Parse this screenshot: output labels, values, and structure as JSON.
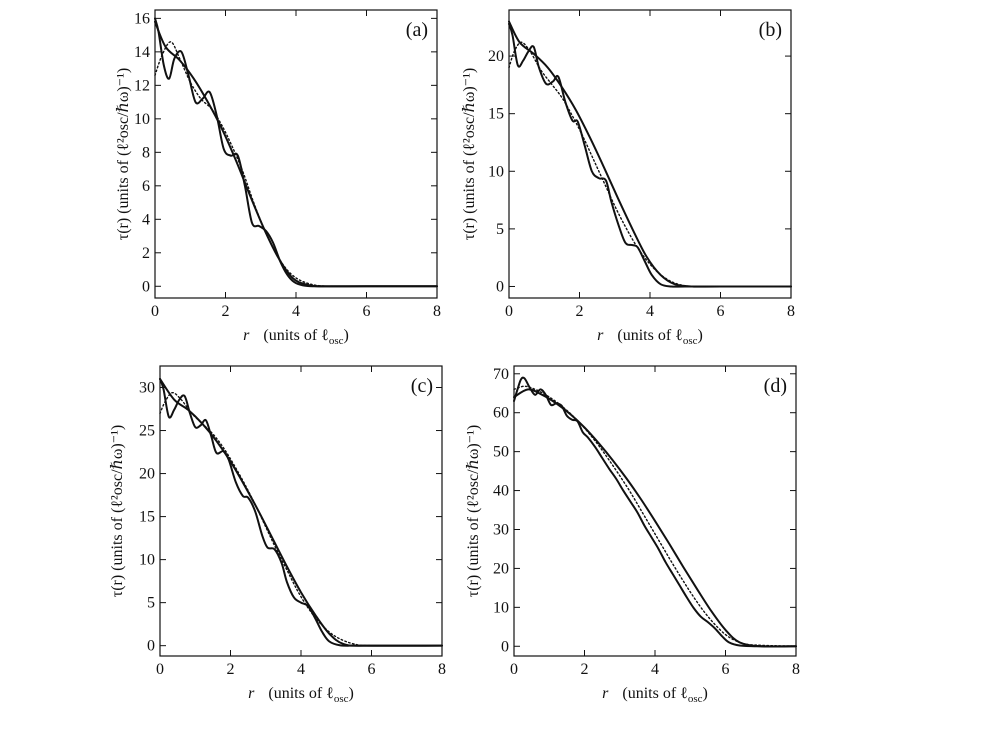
{
  "chart_data": [
    {
      "type": "line",
      "panel": "(a)",
      "xlabel_prefix": "r",
      "xlabel_units": "(units of ℓ",
      "xlabel_sub": "osc",
      "xlabel_close": ")",
      "ylabel": "τ(r)  (units of (ℓ²osc/ℏω)⁻¹)",
      "xlim": [
        0,
        8
      ],
      "ylim": [
        -0.7,
        16.5
      ],
      "xticks": [
        0,
        2,
        4,
        6,
        8
      ],
      "yticks": [
        0,
        2,
        4,
        6,
        8,
        10,
        12,
        14,
        16
      ],
      "series": [
        {
          "name": "solid oscillating",
          "style": "solid",
          "x": [
            0,
            0.1,
            0.25,
            0.4,
            0.55,
            0.75,
            0.95,
            1.15,
            1.35,
            1.55,
            1.75,
            1.95,
            2.15,
            2.35,
            2.55,
            2.75,
            2.95,
            3.15,
            3.35,
            3.55,
            3.75,
            3.95,
            4.2,
            4.5,
            5,
            6,
            8
          ],
          "y": [
            16.0,
            15.2,
            13.2,
            12.4,
            13.6,
            14.0,
            12.6,
            11.0,
            11.2,
            11.6,
            10.2,
            8.2,
            7.8,
            7.8,
            6.0,
            3.8,
            3.6,
            3.3,
            2.6,
            1.5,
            0.7,
            0.25,
            0.05,
            0.0,
            0.0,
            0.0,
            0.0
          ]
        },
        {
          "name": "solid smooth",
          "style": "solid",
          "x": [
            0,
            0.3,
            0.7,
            1.1,
            1.5,
            1.9,
            2.3,
            2.7,
            3.1,
            3.5,
            3.9,
            4.3,
            4.8,
            6,
            8
          ],
          "y": [
            15.8,
            14.3,
            13.5,
            12.4,
            11.0,
            9.4,
            7.5,
            5.4,
            3.4,
            1.7,
            0.5,
            0.1,
            0.0,
            0.0,
            0.0
          ]
        },
        {
          "name": "dotted",
          "style": "dotted",
          "x": [
            0,
            0.2,
            0.45,
            0.7,
            1.0,
            1.3,
            1.6,
            1.9,
            2.2,
            2.5,
            2.8,
            3.1,
            3.4,
            3.7,
            4.0,
            4.3,
            4.6,
            5.0,
            6,
            8
          ],
          "y": [
            12.6,
            13.8,
            14.6,
            13.6,
            12.2,
            11.2,
            10.6,
            9.6,
            8.3,
            6.8,
            5.0,
            3.4,
            2.1,
            1.1,
            0.5,
            0.2,
            0.05,
            0.0,
            0.0,
            0.0
          ]
        }
      ]
    },
    {
      "type": "line",
      "panel": "(b)",
      "xlabel_prefix": "r",
      "xlabel_units": "(units of ℓ",
      "xlabel_sub": "osc",
      "xlabel_close": ")",
      "ylabel": "τ(r)  (units of (ℓ²osc/ℏω)⁻¹)",
      "xlim": [
        0,
        8
      ],
      "ylim": [
        -1,
        24
      ],
      "xticks": [
        0,
        2,
        4,
        6,
        8
      ],
      "yticks": [
        0,
        5,
        10,
        15,
        20
      ],
      "series": [
        {
          "name": "solid oscillating",
          "style": "solid",
          "x": [
            0,
            0.1,
            0.25,
            0.4,
            0.55,
            0.7,
            0.85,
            1.05,
            1.25,
            1.4,
            1.6,
            1.8,
            1.95,
            2.15,
            2.35,
            2.55,
            2.75,
            2.9,
            3.1,
            3.3,
            3.5,
            3.65,
            3.85,
            4.05,
            4.3,
            4.6,
            5,
            6,
            8
          ],
          "y": [
            22.8,
            21.8,
            19.2,
            19.6,
            20.4,
            20.8,
            19.0,
            17.6,
            17.8,
            18.2,
            16.0,
            14.4,
            14.3,
            12.2,
            10.0,
            9.4,
            9.2,
            7.4,
            5.4,
            3.8,
            3.6,
            3.4,
            2.2,
            1.0,
            0.2,
            0.0,
            0.0,
            0.0,
            0.0
          ]
        },
        {
          "name": "solid smooth",
          "style": "solid",
          "x": [
            0,
            0.3,
            0.7,
            1.1,
            1.5,
            1.9,
            2.3,
            2.7,
            3.1,
            3.5,
            3.9,
            4.3,
            4.7,
            5.2,
            6,
            8
          ],
          "y": [
            23.0,
            21.2,
            20.2,
            19.0,
            17.3,
            15.3,
            12.9,
            10.3,
            7.6,
            5.0,
            2.6,
            1.0,
            0.2,
            0.0,
            0.0,
            0.0
          ]
        },
        {
          "name": "dotted",
          "style": "dotted",
          "x": [
            0,
            0.15,
            0.35,
            0.6,
            0.9,
            1.2,
            1.5,
            1.8,
            2.1,
            2.4,
            2.7,
            3.0,
            3.3,
            3.6,
            3.9,
            4.2,
            4.5,
            4.8,
            5.2,
            6,
            8
          ],
          "y": [
            19.0,
            20.4,
            21.2,
            20.4,
            18.8,
            17.6,
            16.4,
            14.8,
            13.0,
            11.0,
            9.0,
            7.0,
            5.2,
            3.6,
            2.3,
            1.3,
            0.6,
            0.2,
            0.0,
            0.0,
            0.0
          ]
        }
      ]
    },
    {
      "type": "line",
      "panel": "(c)",
      "xlabel_prefix": "r",
      "xlabel_units": "(units of ℓ",
      "xlabel_sub": "osc",
      "xlabel_close": ")",
      "ylabel": "τ(r)  (units of (ℓ²osc/ℏω)⁻¹)",
      "xlim": [
        0,
        8
      ],
      "ylim": [
        -1.2,
        32.5
      ],
      "xticks": [
        0,
        2,
        4,
        6,
        8
      ],
      "yticks": [
        0,
        5,
        10,
        15,
        20,
        25,
        30
      ],
      "series": [
        {
          "name": "solid oscillating",
          "style": "solid",
          "x": [
            0,
            0.1,
            0.25,
            0.4,
            0.55,
            0.7,
            0.85,
            1.0,
            1.15,
            1.3,
            1.45,
            1.6,
            1.8,
            1.95,
            2.15,
            2.35,
            2.5,
            2.7,
            2.9,
            3.05,
            3.25,
            3.45,
            3.6,
            3.8,
            4.0,
            4.2,
            4.4,
            4.6,
            4.8,
            5.1,
            5.5,
            6,
            8
          ],
          "y": [
            31.0,
            29.8,
            26.6,
            27.4,
            28.6,
            29.0,
            27.0,
            25.4,
            25.6,
            26.2,
            24.4,
            22.4,
            22.6,
            21.6,
            19.0,
            17.4,
            17.2,
            15.6,
            12.8,
            11.4,
            11.2,
            9.6,
            7.4,
            5.6,
            5.0,
            4.6,
            3.2,
            1.6,
            0.5,
            0.05,
            0.0,
            0.0,
            0.0
          ]
        },
        {
          "name": "solid smooth",
          "style": "solid",
          "x": [
            0,
            0.4,
            0.8,
            1.2,
            1.6,
            2.0,
            2.4,
            2.8,
            3.2,
            3.6,
            4.0,
            4.4,
            4.8,
            5.2,
            5.8,
            8
          ],
          "y": [
            31.0,
            28.6,
            27.4,
            25.8,
            23.8,
            21.4,
            18.6,
            15.6,
            12.4,
            9.2,
            6.2,
            3.6,
            1.4,
            0.2,
            0.0,
            0.0
          ]
        },
        {
          "name": "dotted",
          "style": "dotted",
          "x": [
            0,
            0.15,
            0.35,
            0.6,
            0.9,
            1.2,
            1.5,
            1.8,
            2.1,
            2.4,
            2.7,
            3.0,
            3.3,
            3.6,
            3.9,
            4.2,
            4.5,
            4.8,
            5.1,
            5.5,
            6,
            8
          ],
          "y": [
            27.0,
            28.4,
            29.4,
            28.6,
            27.0,
            25.8,
            24.6,
            23.0,
            21.0,
            18.8,
            16.4,
            13.8,
            11.2,
            8.8,
            6.4,
            4.4,
            2.8,
            1.6,
            0.8,
            0.2,
            0.0,
            0.0
          ]
        }
      ]
    },
    {
      "type": "line",
      "panel": "(d)",
      "xlabel_prefix": "r",
      "xlabel_units": "(units of ℓ",
      "xlabel_sub": "osc",
      "xlabel_close": ")",
      "ylabel": "τ(r)  (units of (ℓ²osc/ℏω)⁻¹)",
      "xlim": [
        0,
        8
      ],
      "ylim": [
        -2.5,
        72
      ],
      "xticks": [
        0,
        2,
        4,
        6,
        8
      ],
      "yticks": [
        0,
        10,
        20,
        30,
        40,
        50,
        60,
        70
      ],
      "series": [
        {
          "name": "solid oscillating",
          "style": "solid",
          "x": [
            0,
            0.1,
            0.2,
            0.3,
            0.45,
            0.6,
            0.75,
            0.9,
            1.05,
            1.2,
            1.35,
            1.5,
            1.65,
            1.8,
            1.95,
            2.1,
            2.3,
            2.5,
            2.7,
            2.9,
            3.1,
            3.3,
            3.5,
            3.7,
            3.9,
            4.1,
            4.3,
            4.5,
            4.7,
            4.9,
            5.1,
            5.3,
            5.5,
            5.7,
            5.9,
            6.1,
            6.4,
            7,
            8
          ],
          "y": [
            63.0,
            66.0,
            68.6,
            68.8,
            66.4,
            64.6,
            66.0,
            64.6,
            62.0,
            62.4,
            61.8,
            59.2,
            58.2,
            57.8,
            55.0,
            53.6,
            51.2,
            48.4,
            45.6,
            43.0,
            40.0,
            37.2,
            34.4,
            31.0,
            28.0,
            25.0,
            21.6,
            18.6,
            15.6,
            12.6,
            9.8,
            7.6,
            6.2,
            4.6,
            2.6,
            1.0,
            0.2,
            0.0,
            0.0
          ]
        },
        {
          "name": "solid smooth",
          "style": "solid",
          "x": [
            0,
            0.4,
            0.8,
            1.2,
            1.6,
            2.0,
            2.4,
            2.8,
            3.2,
            3.6,
            4.0,
            4.4,
            4.8,
            5.2,
            5.6,
            6.0,
            6.4,
            7,
            8
          ],
          "y": [
            64.0,
            66.0,
            64.6,
            62.4,
            59.6,
            56.2,
            52.2,
            47.8,
            43.0,
            37.8,
            32.2,
            26.4,
            20.4,
            14.6,
            9.0,
            4.2,
            1.0,
            0.0,
            0.0
          ]
        },
        {
          "name": "dotted",
          "style": "dotted",
          "x": [
            0,
            0.3,
            0.6,
            0.9,
            1.2,
            1.5,
            1.8,
            2.1,
            2.4,
            2.7,
            3.0,
            3.3,
            3.6,
            3.9,
            4.2,
            4.5,
            4.8,
            5.1,
            5.4,
            5.7,
            6.0,
            6.3,
            6.7,
            8
          ],
          "y": [
            66.0,
            66.8,
            66.0,
            64.6,
            62.8,
            60.6,
            58.0,
            55.0,
            51.6,
            47.8,
            43.8,
            39.6,
            35.0,
            30.4,
            25.8,
            21.2,
            16.8,
            12.6,
            8.8,
            5.6,
            3.0,
            1.4,
            0.4,
            0.0
          ]
        }
      ]
    }
  ]
}
